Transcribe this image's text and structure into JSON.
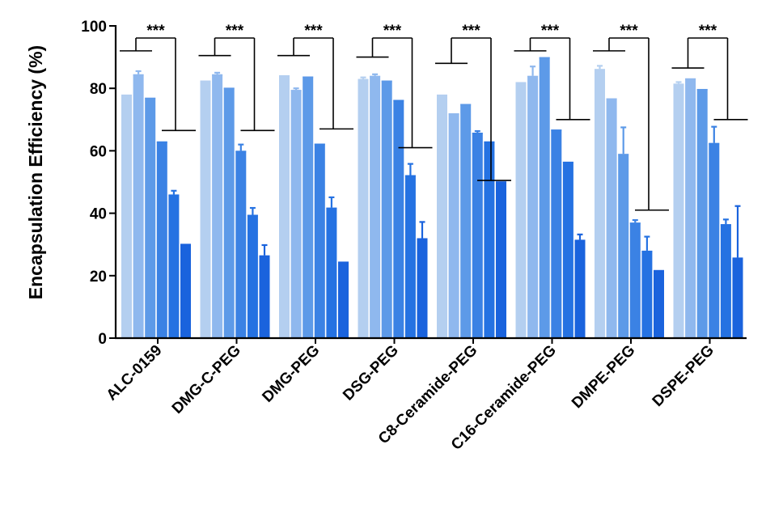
{
  "chart_data": {
    "type": "bar",
    "title": "",
    "xlabel": "",
    "ylabel": "Encapsulation Efficiency (%)",
    "ylim": [
      0,
      100
    ],
    "yticks": [
      0,
      20,
      40,
      60,
      80,
      100
    ],
    "grid": false,
    "legend": "none",
    "categories": [
      "ALC-0159",
      "DMG-C-PEG",
      "DMG-PEG",
      "DSG-PEG",
      "C8-Ceramide-PEG",
      "C16-Ceramide-PEG",
      "DMPE-PEG",
      "DSPE-PEG"
    ],
    "bar_colors": [
      "#b4cff0",
      "#8fb8ee",
      "#5d9ae8",
      "#3b82e4",
      "#2572e2",
      "#1a63dd"
    ],
    "groups": [
      {
        "category": "ALC-0159",
        "values": [
          78,
          84.5,
          77,
          63,
          46,
          30.2
        ],
        "errors": [
          0,
          1,
          0,
          0,
          1.2,
          0
        ],
        "significance": "***"
      },
      {
        "category": "DMG-C-PEG",
        "values": [
          82.5,
          84.5,
          80.2,
          60,
          39.5,
          26.5
        ],
        "errors": [
          0,
          0.5,
          0,
          2,
          2.2,
          3.3
        ],
        "significance": "***"
      },
      {
        "category": "DMG-PEG",
        "values": [
          84.2,
          79.5,
          83.8,
          62.3,
          41.8,
          24.5
        ],
        "errors": [
          0,
          0.5,
          0,
          0,
          3.3,
          0
        ],
        "significance": "***"
      },
      {
        "category": "DSG-PEG",
        "values": [
          83,
          84,
          82.5,
          76.3,
          52.2,
          32
        ],
        "errors": [
          0.5,
          0.5,
          0,
          0,
          3.6,
          5.2
        ],
        "significance": "***"
      },
      {
        "category": "C8-Ceramide-PEG",
        "values": [
          78,
          72,
          75,
          65.8,
          63,
          50.2
        ],
        "errors": [
          0,
          0,
          0,
          0.5,
          0,
          0
        ],
        "significance": "***"
      },
      {
        "category": "C16-Ceramide-PEG",
        "values": [
          82,
          84,
          90,
          66.8,
          56.5,
          31.5
        ],
        "errors": [
          0,
          3,
          0,
          0,
          0,
          1.7
        ],
        "significance": "***"
      },
      {
        "category": "DMPE-PEG",
        "values": [
          86.2,
          76.8,
          59,
          37,
          28,
          21.8
        ],
        "errors": [
          1,
          0,
          8.5,
          0.8,
          4.5,
          0
        ],
        "significance": "***"
      },
      {
        "category": "DSPE-PEG",
        "values": [
          81.5,
          83.2,
          79.8,
          62.5,
          36.5,
          25.8
        ],
        "errors": [
          0.5,
          0,
          0,
          5.2,
          1.5,
          16.5
        ],
        "significance": "***"
      }
    ],
    "brackets": [
      {
        "left_level": 92,
        "right_level": 66.5
      },
      {
        "left_level": 90.5,
        "right_level": 66.5
      },
      {
        "left_level": 90.5,
        "right_level": 67
      },
      {
        "left_level": 90,
        "right_level": 61
      },
      {
        "left_level": 88,
        "right_level": 50.5
      },
      {
        "left_level": 92,
        "right_level": 70
      },
      {
        "left_level": 92,
        "right_level": 41
      },
      {
        "left_level": 86.5,
        "right_level": 70
      }
    ]
  }
}
